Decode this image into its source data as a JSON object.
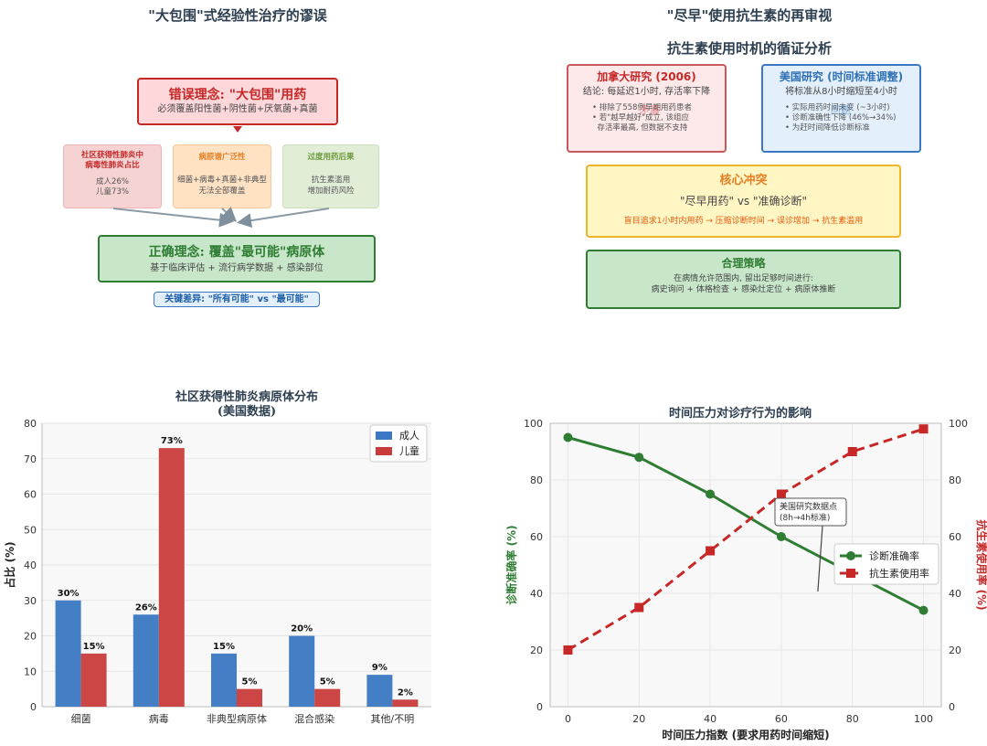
{
  "panel_tl": {
    "title": "\"大包围\"式经验性治疗的谬误",
    "wrong_title": "错误理念: \"大包围\"用药",
    "wrong_sub": "必须覆盖阳性菌+阴性菌+厌氧菌+真菌",
    "box1_title": "社区获得性肺炎中\n病毒性肺炎占比",
    "box1_text": "成人26%\n儿童73%",
    "box2_title": "病原谱广泛性",
    "box2_text": "细菌+病毒+真菌+非典型\n无法全部覆盖",
    "box3_title": "过度用药后果",
    "box3_text": "抗生素滥用\n增加耐药风险",
    "right_title": "正确理念: 覆盖\"最可能\"病原体",
    "right_sub": "基于临床评估 + 流行病学数据 + 感染部位",
    "key_diff": "关键差异: \"所有可能\" vs \"最可能\""
  },
  "panel_tr": {
    "title": "\"尽早\"使用抗生素的再审视",
    "subtitle": "抗生素使用时机的循证分析",
    "canada_title": "加拿大研究 (2006)",
    "canada_sub": "结论: 每延迟1小时, 存活率下降",
    "canada_points": "• 排除了558例早期用药患者\n• 若\"越早越好\"成立, 该组应\n  存活率最高, 但数据不支持",
    "canada_stamp": "矛盾",
    "us_title": "美国研究 (时间标准调整)",
    "us_sub": "将标准从8小时缩短至4小时",
    "us_points": "• 实际用药时间未变 (~3小时)\n• 诊断准确性下降 (46%→34%)\n• 为赶时间降低诊断标准",
    "us_stamp": "问题",
    "core_title": "核心冲突",
    "core_main": "\"尽早用药\" vs \"准确诊断\"",
    "core_chain": "盲目追求1小时内用药 → 压缩诊断时间 → 误诊增加 → 抗生素滥用",
    "strategy_title": "合理策略",
    "strategy_text": "在病情允许范围内, 留出足够时间进行:\n病史询问 + 体格检查 + 感染灶定位 + 病原体推断"
  },
  "chart_data": [
    {
      "type": "bar",
      "title": "社区获得性肺炎病原体分布\n(美国数据)",
      "xlabel": "",
      "ylabel": "占比 (%)",
      "ylim": [
        0,
        80
      ],
      "yticks": [
        0,
        10,
        20,
        30,
        40,
        50,
        60,
        70,
        80
      ],
      "grid": true,
      "legend": "top-right",
      "categories": [
        "细菌",
        "病毒",
        "非典型病原体",
        "混合感染",
        "其他/不明"
      ],
      "series": [
        {
          "name": "成人",
          "values": [
            30,
            26,
            15,
            20,
            9
          ],
          "labels": [
            "30%",
            "26%",
            "15%",
            "20%",
            "9%"
          ],
          "color": "#3a78c3"
        },
        {
          "name": "儿童",
          "values": [
            15,
            73,
            5,
            5,
            2
          ],
          "labels": [
            "15%",
            "73%",
            "5%",
            "5%",
            "2%"
          ],
          "color": "#c93c3c"
        }
      ]
    },
    {
      "type": "line",
      "title": "时间压力对诊疗行为的影响",
      "xlabel": "时间压力指数 (要求用药时间缩短)",
      "ylabel": "诊断准确率 (%)",
      "ylabel_right": "抗生素使用率 (%)",
      "xlim": [
        -5,
        105
      ],
      "ylim": [
        0,
        100
      ],
      "xticks": [
        0,
        20,
        40,
        60,
        80,
        100
      ],
      "yticks": [
        0,
        20,
        40,
        60,
        80,
        100
      ],
      "grid": true,
      "legend": "center-right",
      "x": [
        0,
        20,
        40,
        60,
        80,
        100
      ],
      "series": [
        {
          "name": "诊断准确率",
          "values": [
            95,
            88,
            75,
            60,
            47,
            34
          ],
          "color": "#2e7d32",
          "axis": "left"
        },
        {
          "name": "抗生素使用率",
          "values": [
            20,
            35,
            55,
            75,
            90,
            98
          ],
          "color": "#c62828",
          "axis": "right"
        }
      ],
      "annotation": {
        "text": "美国研究数据点\n(8h→4h标准)",
        "x": 60,
        "y": 60
      }
    }
  ]
}
